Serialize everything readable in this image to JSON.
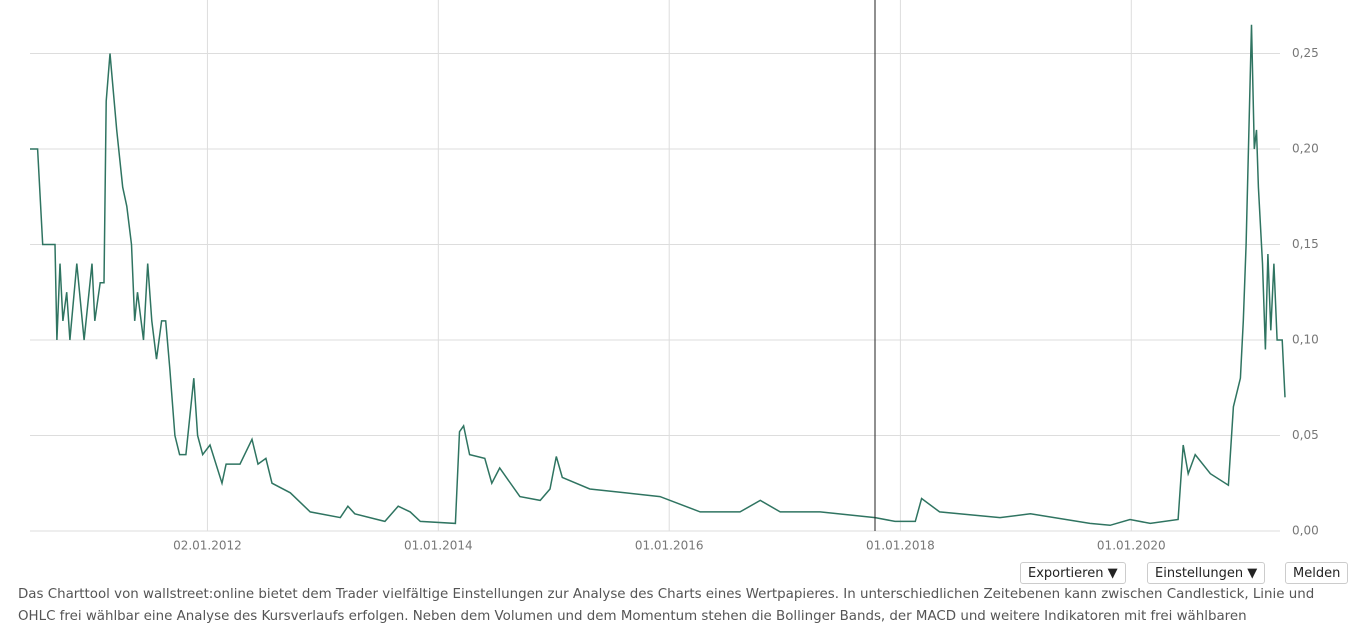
{
  "chart_data": {
    "type": "line",
    "x": [
      "2010-06-20",
      "2010-07-14",
      "2010-07-30",
      "2010-09-07",
      "2010-09-13",
      "2010-09-23",
      "2010-10-02",
      "2010-10-14",
      "2010-10-24",
      "2010-11-15",
      "2010-12-08",
      "2011-01-02",
      "2011-01-11",
      "2011-01-28",
      "2011-02-09",
      "2011-02-16",
      "2011-02-28",
      "2011-03-21",
      "2011-04-09",
      "2011-04-22",
      "2011-05-07",
      "2011-05-17",
      "2011-05-26",
      "2011-06-14",
      "2011-06-27",
      "2011-07-10",
      "2011-07-25",
      "2011-08-10",
      "2011-08-23",
      "2011-09-05",
      "2011-09-21",
      "2011-10-06",
      "2011-10-26",
      "2011-11-20",
      "2011-12-02",
      "2011-12-18",
      "2012-01-10",
      "2012-02-17",
      "2012-03-01",
      "2012-04-14",
      "2012-05-22",
      "2012-06-10",
      "2012-07-05",
      "2012-07-24",
      "2012-09-20",
      "2012-11-22",
      "2013-02-25",
      "2013-03-21",
      "2013-04-12",
      "2013-07-16",
      "2013-08-27",
      "2013-10-04",
      "2013-11-05",
      "2014-02-24",
      "2014-03-09",
      "2014-03-22",
      "2014-04-10",
      "2014-05-28",
      "2014-06-19",
      "2014-07-14",
      "2014-09-16",
      "2014-11-19",
      "2014-12-20",
      "2015-01-09",
      "2015-01-28",
      "2015-04-25",
      "2015-08-14",
      "2015-12-03",
      "2016-04-08",
      "2016-08-12",
      "2016-10-15",
      "2016-12-17",
      "2017-04-22",
      "2017-10-13",
      "2017-12-15",
      "2018-02-17",
      "2018-03-09",
      "2018-05-05",
      "2018-11-12",
      "2019-02-16",
      "2019-08-23",
      "2019-10-26",
      "2019-12-28",
      "2020-03-01",
      "2020-05-28",
      "2020-06-13",
      "2020-06-29",
      "2020-07-21",
      "2020-09-07",
      "2020-11-03",
      "2020-11-19",
      "2020-12-11",
      "2020-12-20",
      "2020-12-29",
      "2021-01-15",
      "2021-01-24",
      "2021-01-31",
      "2021-02-06",
      "2021-02-19",
      "2021-02-28",
      "2021-03-08",
      "2021-03-17",
      "2021-03-27",
      "2021-04-06",
      "2021-04-22",
      "2021-05-01"
    ],
    "series": [
      {
        "color": "#2f7461",
        "values": [
          0.2,
          0.2,
          0.15,
          0.15,
          0.1,
          0.14,
          0.11,
          0.125,
          0.1,
          0.14,
          0.1,
          0.14,
          0.11,
          0.13,
          0.13,
          0.225,
          0.25,
          0.21,
          0.18,
          0.17,
          0.15,
          0.11,
          0.125,
          0.1,
          0.14,
          0.11,
          0.09,
          0.11,
          0.11,
          0.085,
          0.05,
          0.04,
          0.04,
          0.08,
          0.05,
          0.04,
          0.045,
          0.025,
          0.035,
          0.035,
          0.048,
          0.035,
          0.038,
          0.025,
          0.02,
          0.01,
          0.007,
          0.013,
          0.009,
          0.005,
          0.013,
          0.01,
          0.005,
          0.004,
          0.052,
          0.055,
          0.04,
          0.038,
          0.025,
          0.033,
          0.018,
          0.016,
          0.022,
          0.039,
          0.028,
          0.022,
          0.02,
          0.018,
          0.01,
          0.01,
          0.016,
          0.01,
          0.01,
          0.007,
          0.005,
          0.005,
          0.017,
          0.01,
          0.007,
          0.009,
          0.004,
          0.003,
          0.006,
          0.004,
          0.006,
          0.045,
          0.03,
          0.04,
          0.03,
          0.024,
          0.065,
          0.08,
          0.11,
          0.15,
          0.265,
          0.2,
          0.21,
          0.18,
          0.14,
          0.095,
          0.145,
          0.105,
          0.14,
          0.1,
          0.1,
          0.07
        ]
      }
    ],
    "xlim": [
      "2010-06-20",
      "2021-05-01"
    ],
    "xticks": [
      {
        "value": "2012-01-02",
        "label": "02.01.2012"
      },
      {
        "value": "2014-01-01",
        "label": "01.01.2014"
      },
      {
        "value": "2016-01-01",
        "label": "01.01.2016"
      },
      {
        "value": "2018-01-01",
        "label": "01.01.2018"
      },
      {
        "value": "2020-01-01",
        "label": "01.01.2020"
      }
    ],
    "ylim": [
      0,
      0.278
    ],
    "yticks": [
      {
        "value": 0,
        "label": "0,00"
      },
      {
        "value": 0.05,
        "label": "0,05"
      },
      {
        "value": 0.1,
        "label": "0,10"
      },
      {
        "value": 0.15,
        "label": "0,15"
      },
      {
        "value": 0.2,
        "label": "0,20"
      },
      {
        "value": 0.25,
        "label": "0,25"
      }
    ],
    "grid": true
  },
  "toolbar": {
    "buttons": [
      "Exportieren ▼",
      "Einstellungen ▼",
      "Melden"
    ]
  },
  "description": "Das Charttool von wallstreet:online bietet dem Trader vielfältige Einstellungen zur Analyse des Charts eines Wertpapieres. In unterschiedlichen Zeitebenen kann zwischen Candlestick, Linie und OHLC frei wählbar eine Analyse des Kursverlaufs erfolgen. Neben dem Volumen und dem Momentum stehen die Bollinger Bands, der MACD und weitere Indikatoren mit frei wählbaren"
}
